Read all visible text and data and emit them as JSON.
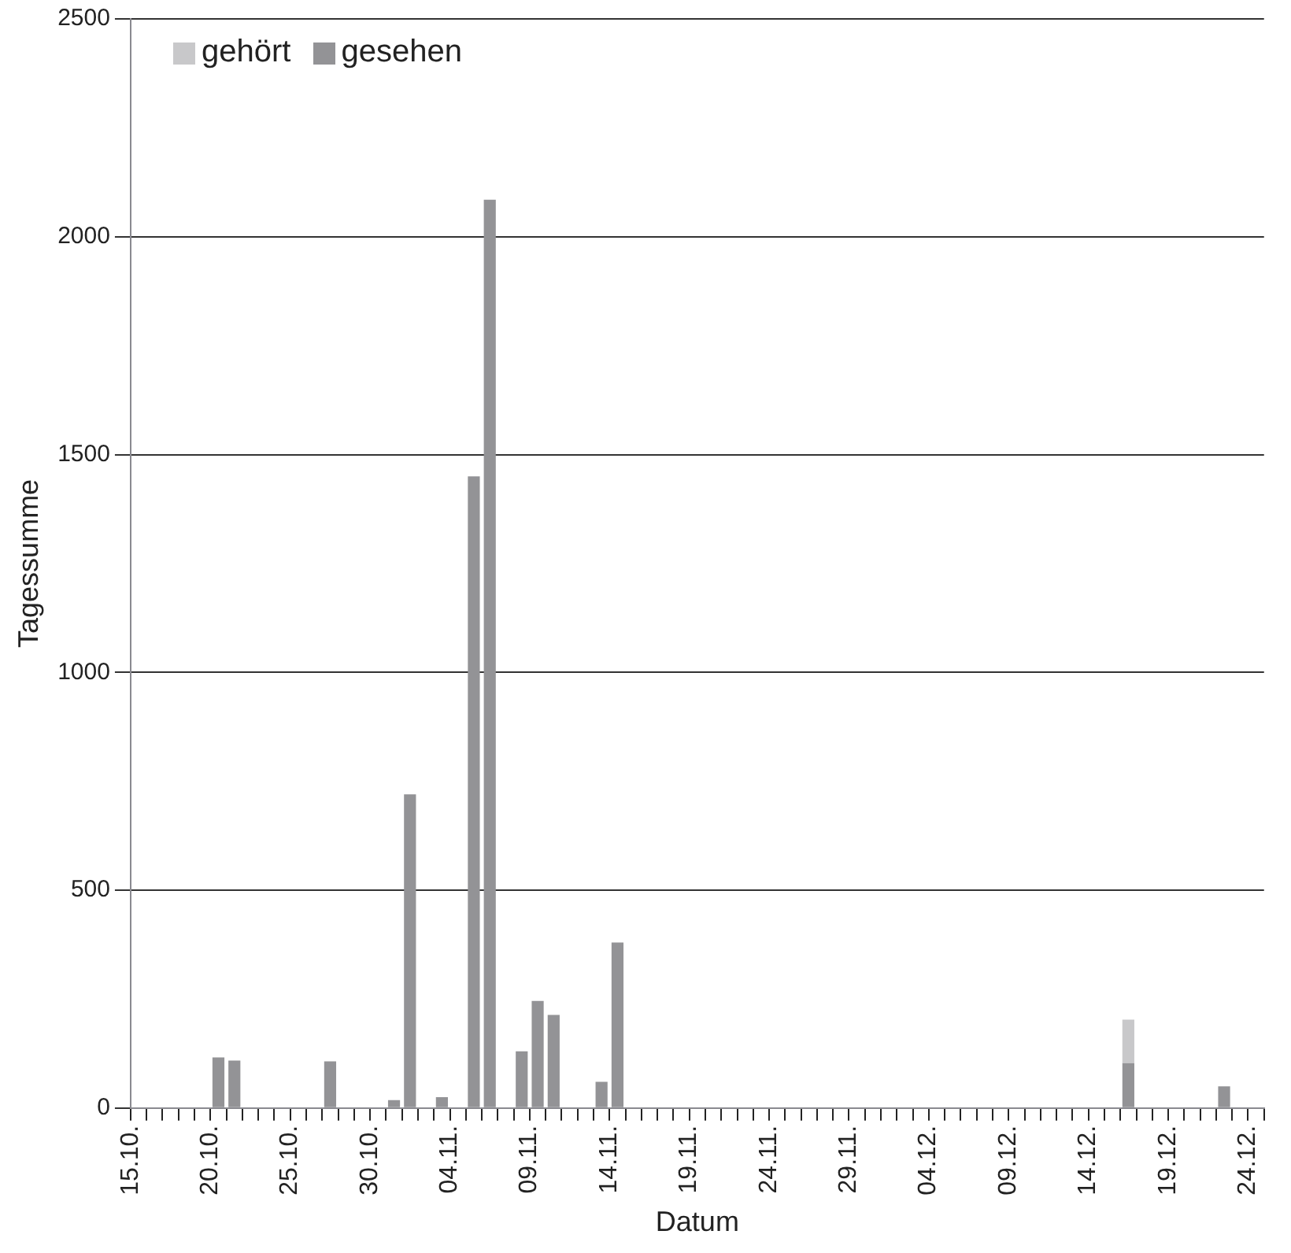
{
  "chart_data": {
    "type": "bar",
    "stacked": true,
    "xlabel": "Datum",
    "ylabel": "Tagessumme",
    "categories": [
      "15.10.",
      null,
      null,
      null,
      null,
      "20.10.",
      null,
      null,
      null,
      null,
      "25.10.",
      null,
      null,
      null,
      null,
      "30.10.",
      null,
      null,
      null,
      null,
      "04.11.",
      null,
      null,
      null,
      null,
      "09.11.",
      null,
      null,
      null,
      null,
      "14.11.",
      null,
      null,
      null,
      null,
      "19.11.",
      null,
      null,
      null,
      null,
      "24.11.",
      null,
      null,
      null,
      null,
      "29.11.",
      null,
      null,
      null,
      null,
      "04.12.",
      null,
      null,
      null,
      null,
      "09.12.",
      null,
      null,
      null,
      null,
      "14.12.",
      null,
      null,
      null,
      null,
      "19.12.",
      null,
      null,
      null,
      null,
      "24.12."
    ],
    "series": [
      {
        "name": "gehört",
        "color": "#c8c8ca",
        "values": [
          null,
          null,
          null,
          null,
          null,
          null,
          null,
          null,
          null,
          null,
          null,
          null,
          null,
          null,
          null,
          null,
          null,
          null,
          null,
          null,
          null,
          null,
          null,
          null,
          null,
          null,
          null,
          null,
          null,
          null,
          null,
          null,
          null,
          null,
          null,
          null,
          null,
          null,
          null,
          null,
          null,
          null,
          null,
          null,
          null,
          null,
          null,
          null,
          null,
          null,
          null,
          null,
          null,
          null,
          null,
          null,
          null,
          null,
          null,
          null,
          null,
          null,
          100,
          null,
          null,
          null,
          null,
          null,
          null,
          null,
          null
        ]
      },
      {
        "name": "gesehen",
        "color": "#939396",
        "values": [
          null,
          null,
          null,
          null,
          null,
          116,
          109,
          null,
          null,
          null,
          null,
          null,
          107,
          null,
          null,
          null,
          18,
          720,
          null,
          25,
          null,
          1450,
          2085,
          null,
          130,
          246,
          214,
          null,
          null,
          60,
          380,
          null,
          null,
          null,
          null,
          null,
          null,
          null,
          null,
          null,
          null,
          null,
          null,
          null,
          null,
          null,
          null,
          null,
          null,
          null,
          null,
          null,
          null,
          null,
          null,
          null,
          null,
          null,
          null,
          null,
          null,
          null,
          103,
          null,
          null,
          null,
          null,
          null,
          50,
          null,
          null
        ]
      }
    ],
    "ylim": [
      0,
      2500
    ],
    "yticks": [
      0,
      500,
      1000,
      1500,
      2000,
      2500
    ],
    "grid": "y",
    "legend": "top left"
  }
}
